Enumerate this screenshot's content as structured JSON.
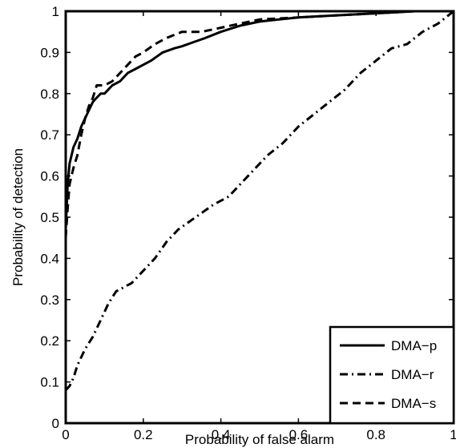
{
  "chart_data": {
    "type": "line",
    "xlabel": "Probability of false alarm",
    "ylabel": "Probability of detection",
    "xlim": [
      0,
      1
    ],
    "ylim": [
      0,
      1
    ],
    "xticks": [
      "0",
      "0.2",
      "0.4",
      "0.6",
      "0.8",
      "1"
    ],
    "yticks": [
      "0",
      "0.1",
      "0.2",
      "0.3",
      "0.4",
      "0.5",
      "0.6",
      "0.7",
      "0.8",
      "0.9",
      "1"
    ],
    "grid": false,
    "legend_position": "bottom-right",
    "series": [
      {
        "name": "DMA−p",
        "line_style": "solid",
        "color": "#000000",
        "points": [
          [
            0,
            0.47
          ],
          [
            0.005,
            0.58
          ],
          [
            0.01,
            0.63
          ],
          [
            0.02,
            0.67
          ],
          [
            0.03,
            0.69
          ],
          [
            0.04,
            0.72
          ],
          [
            0.05,
            0.74
          ],
          [
            0.06,
            0.76
          ],
          [
            0.07,
            0.78
          ],
          [
            0.08,
            0.79
          ],
          [
            0.09,
            0.8
          ],
          [
            0.1,
            0.8
          ],
          [
            0.12,
            0.82
          ],
          [
            0.14,
            0.83
          ],
          [
            0.16,
            0.85
          ],
          [
            0.18,
            0.86
          ],
          [
            0.2,
            0.87
          ],
          [
            0.22,
            0.88
          ],
          [
            0.25,
            0.9
          ],
          [
            0.28,
            0.91
          ],
          [
            0.3,
            0.915
          ],
          [
            0.33,
            0.925
          ],
          [
            0.36,
            0.935
          ],
          [
            0.4,
            0.95
          ],
          [
            0.45,
            0.965
          ],
          [
            0.5,
            0.975
          ],
          [
            0.55,
            0.98
          ],
          [
            0.6,
            0.985
          ],
          [
            0.7,
            0.99
          ],
          [
            0.8,
            0.995
          ],
          [
            0.9,
            1.0
          ],
          [
            1.0,
            1.0
          ]
        ]
      },
      {
        "name": "DMA−r",
        "line_style": "dashdot",
        "color": "#000000",
        "points": [
          [
            0,
            0.08
          ],
          [
            0.01,
            0.09
          ],
          [
            0.02,
            0.11
          ],
          [
            0.03,
            0.14
          ],
          [
            0.05,
            0.18
          ],
          [
            0.07,
            0.21
          ],
          [
            0.09,
            0.25
          ],
          [
            0.11,
            0.29
          ],
          [
            0.13,
            0.32
          ],
          [
            0.15,
            0.33
          ],
          [
            0.17,
            0.34
          ],
          [
            0.2,
            0.37
          ],
          [
            0.23,
            0.4
          ],
          [
            0.26,
            0.44
          ],
          [
            0.29,
            0.47
          ],
          [
            0.32,
            0.49
          ],
          [
            0.35,
            0.51
          ],
          [
            0.38,
            0.53
          ],
          [
            0.42,
            0.55
          ],
          [
            0.45,
            0.58
          ],
          [
            0.48,
            0.61
          ],
          [
            0.52,
            0.65
          ],
          [
            0.56,
            0.68
          ],
          [
            0.6,
            0.72
          ],
          [
            0.64,
            0.75
          ],
          [
            0.68,
            0.78
          ],
          [
            0.72,
            0.81
          ],
          [
            0.76,
            0.85
          ],
          [
            0.8,
            0.88
          ],
          [
            0.84,
            0.91
          ],
          [
            0.88,
            0.92
          ],
          [
            0.92,
            0.95
          ],
          [
            0.96,
            0.97
          ],
          [
            1.0,
            1.0
          ]
        ]
      },
      {
        "name": "DMA−s",
        "line_style": "dashed",
        "color": "#000000",
        "points": [
          [
            0,
            0.45
          ],
          [
            0.005,
            0.52
          ],
          [
            0.01,
            0.58
          ],
          [
            0.02,
            0.62
          ],
          [
            0.03,
            0.65
          ],
          [
            0.04,
            0.7
          ],
          [
            0.05,
            0.74
          ],
          [
            0.06,
            0.77
          ],
          [
            0.07,
            0.79
          ],
          [
            0.08,
            0.82
          ],
          [
            0.1,
            0.82
          ],
          [
            0.12,
            0.83
          ],
          [
            0.14,
            0.85
          ],
          [
            0.16,
            0.87
          ],
          [
            0.18,
            0.89
          ],
          [
            0.2,
            0.9
          ],
          [
            0.23,
            0.92
          ],
          [
            0.26,
            0.935
          ],
          [
            0.3,
            0.95
          ],
          [
            0.35,
            0.95
          ],
          [
            0.4,
            0.96
          ],
          [
            0.45,
            0.97
          ],
          [
            0.5,
            0.98
          ],
          [
            0.6,
            0.985
          ],
          [
            0.7,
            0.99
          ],
          [
            0.8,
            0.995
          ],
          [
            0.9,
            1.0
          ],
          [
            1.0,
            1.0
          ]
        ]
      }
    ]
  }
}
